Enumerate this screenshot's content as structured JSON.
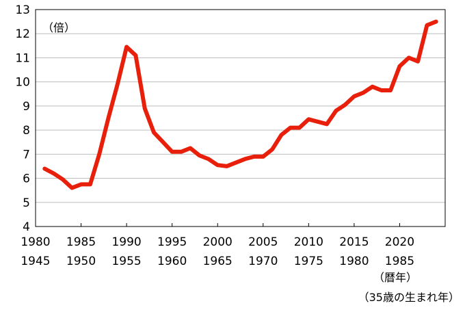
{
  "chart_data": {
    "type": "line",
    "y_unit_label": "（倍）",
    "xlabel": "（暦年）",
    "xlabel_secondary": "（35歳の生まれ年）",
    "ylim": [
      4,
      13
    ],
    "y_ticks": [
      "4",
      "5",
      "6",
      "7",
      "8",
      "9",
      "10",
      "11",
      "12",
      "13"
    ],
    "xlim": [
      1980,
      2025
    ],
    "x_ticks": [
      1980,
      1985,
      1990,
      1995,
      2000,
      2005,
      2010,
      2015,
      2020
    ],
    "x_tick_labels": [
      "1980",
      "1985",
      "1990",
      "1995",
      "2000",
      "2005",
      "2010",
      "2015",
      "2020"
    ],
    "x_tick_labels_secondary": [
      "1945",
      "1950",
      "1955",
      "1960",
      "1965",
      "1970",
      "1975",
      "1980",
      "1985"
    ],
    "grid": true,
    "series": [
      {
        "color": "#e8200b",
        "x": [
          1981,
          1982,
          1983,
          1984,
          1985,
          1986,
          1987,
          1988,
          1989,
          1990,
          1991,
          1992,
          1993,
          1994,
          1995,
          1996,
          1997,
          1998,
          1999,
          2000,
          2001,
          2002,
          2003,
          2004,
          2005,
          2006,
          2007,
          2008,
          2009,
          2010,
          2011,
          2012,
          2013,
          2014,
          2015,
          2016,
          2017,
          2018,
          2019,
          2020,
          2021,
          2022,
          2023,
          2024
        ],
        "y": [
          6.4,
          6.2,
          5.95,
          5.6,
          5.75,
          5.75,
          7.0,
          8.5,
          9.9,
          11.45,
          11.1,
          8.9,
          7.9,
          7.5,
          7.1,
          7.1,
          7.25,
          6.95,
          6.8,
          6.55,
          6.5,
          6.65,
          6.8,
          6.9,
          6.9,
          7.2,
          7.8,
          8.1,
          8.1,
          8.45,
          8.35,
          8.25,
          8.8,
          9.05,
          9.4,
          9.55,
          9.8,
          9.65,
          9.65,
          10.65,
          11.0,
          10.85,
          12.35,
          12.5
        ]
      }
    ]
  }
}
